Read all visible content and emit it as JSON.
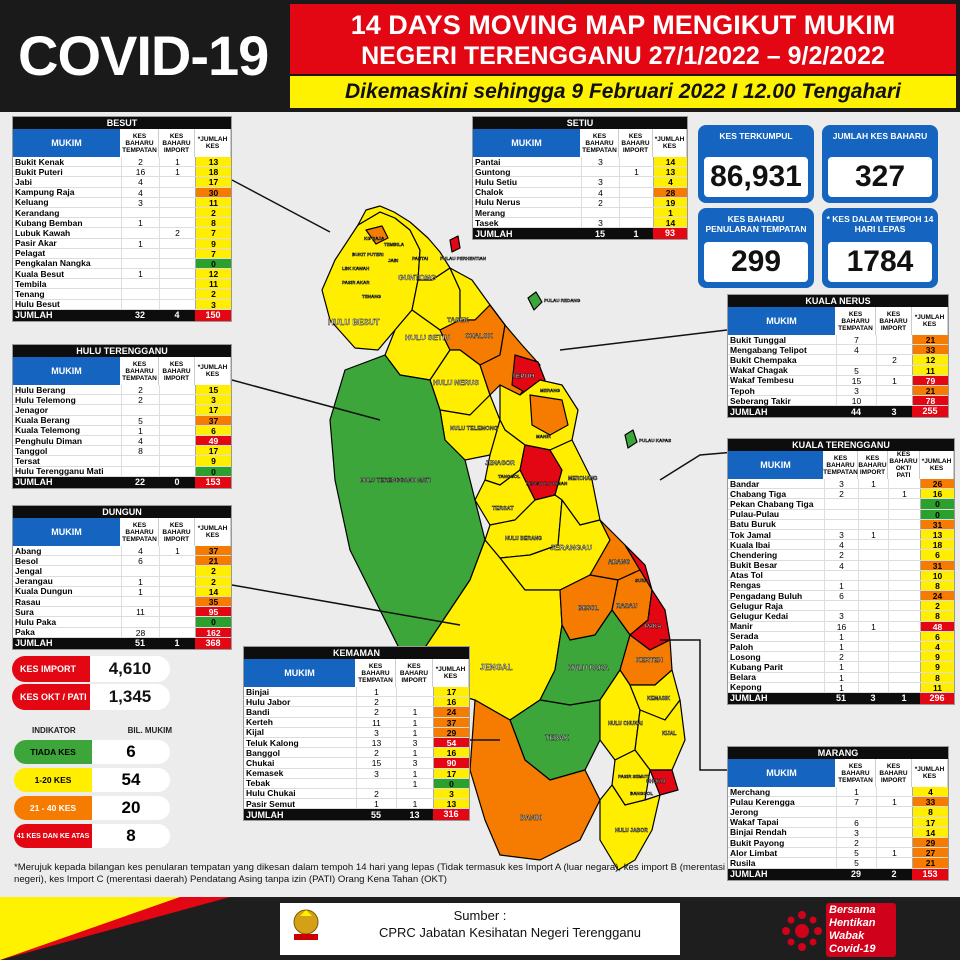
{
  "header": {
    "covid": "COVID-19",
    "title1": "14 DAYS MOVING MAP MENGIKUT MUKIM",
    "title2": "NEGERI TERENGGANU 27/1/2022 – 9/2/2022",
    "updated": "Dikemaskini sehingga  9 Februari 2022 I 12.00 Tengahari"
  },
  "columns": {
    "mukim": "MUKIM",
    "tempatan": "KES BAHARU TEMPATAN",
    "import": "KES BAHARU IMPORT",
    "okt": "KES BAHARU OKT/ PATI",
    "jumlah": "*JUMLAH KES",
    "total": "JUMLAH"
  },
  "stats": {
    "kes_terkumpul": {
      "label": "KES TERKUMPUL",
      "value": "86,931"
    },
    "jumlah_baharu": {
      "label": "JUMLAH KES BAHARU",
      "value": "327"
    },
    "penularan": {
      "label": "KES BAHARU PENULARAN TEMPATAN",
      "value": "299"
    },
    "tempoh": {
      "label": "* KES DALAM TEMPOH 14 HARI LEPAS",
      "value": "1784"
    }
  },
  "besut": {
    "title": "BESUT",
    "rows": [
      [
        "Bukit Kenak",
        "2",
        "1",
        "13",
        "y"
      ],
      [
        "Bukit Puteri",
        "16",
        "1",
        "18",
        "y"
      ],
      [
        "Jabi",
        "4",
        "",
        "17",
        "y"
      ],
      [
        "Kampung Raja",
        "4",
        "",
        "30",
        "o"
      ],
      [
        "Keluang",
        "3",
        "",
        "11",
        "y"
      ],
      [
        "Kerandang",
        "",
        "",
        "2",
        "y"
      ],
      [
        "Kubang Bemban",
        "1",
        "",
        "8",
        "y"
      ],
      [
        "Lubuk Kawah",
        "",
        "2",
        "7",
        "y"
      ],
      [
        "Pasir Akar",
        "1",
        "",
        "9",
        "y"
      ],
      [
        "Pelagat",
        "",
        "",
        "7",
        "y"
      ],
      [
        "Pengkalan Nangka",
        "",
        "",
        "0",
        "g"
      ],
      [
        "Kuala Besut",
        "1",
        "",
        "12",
        "y"
      ],
      [
        "Tembila",
        "",
        "",
        "11",
        "y"
      ],
      [
        "Tenang",
        "",
        "",
        "2",
        "y"
      ],
      [
        "Hulu Besut",
        "",
        "",
        "3",
        "y"
      ]
    ],
    "total": [
      "32",
      "4",
      "150"
    ]
  },
  "hulu_terengganu": {
    "title": "HULU TERENGGANU",
    "rows": [
      [
        "Hulu Berang",
        "2",
        "",
        "15",
        "y"
      ],
      [
        "Hulu Telemong",
        "2",
        "",
        "3",
        "y"
      ],
      [
        "Jenagor",
        "",
        "",
        "17",
        "y"
      ],
      [
        "Kuala Berang",
        "5",
        "",
        "37",
        "o"
      ],
      [
        "Kuala Telemong",
        "1",
        "",
        "6",
        "y"
      ],
      [
        "Penghulu Diman",
        "4",
        "",
        "49",
        "r"
      ],
      [
        "Tanggol",
        "8",
        "",
        "17",
        "y"
      ],
      [
        "Tersat",
        "",
        "",
        "9",
        "y"
      ],
      [
        "Hulu Terengganu Mati",
        "",
        "",
        "0",
        "g"
      ]
    ],
    "total": [
      "22",
      "0",
      "153"
    ]
  },
  "dungun": {
    "title": "DUNGUN",
    "rows": [
      [
        "Abang",
        "4",
        "1",
        "37",
        "o"
      ],
      [
        "Besol",
        "6",
        "",
        "21",
        "o"
      ],
      [
        "Jengal",
        "",
        "",
        "2",
        "y"
      ],
      [
        "Jerangau",
        "1",
        "",
        "2",
        "y"
      ],
      [
        "Kuala Dungun",
        "1",
        "",
        "14",
        "y"
      ],
      [
        "Rasau",
        "",
        "",
        "35",
        "o"
      ],
      [
        "Sura",
        "11",
        "",
        "95",
        "r"
      ],
      [
        "Hulu Paka",
        "",
        "",
        "0",
        "g"
      ],
      [
        "Paka",
        "28",
        "",
        "162",
        "r"
      ]
    ],
    "total": [
      "51",
      "1",
      "368"
    ]
  },
  "setiu": {
    "title": "SETIU",
    "rows": [
      [
        "Pantai",
        "3",
        "",
        "14",
        "y"
      ],
      [
        "Guntong",
        "",
        "1",
        "13",
        "y"
      ],
      [
        "Hulu Setiu",
        "3",
        "",
        "4",
        "y"
      ],
      [
        "Chalok",
        "4",
        "",
        "28",
        "o"
      ],
      [
        "Hulu Nerus",
        "2",
        "",
        "19",
        "y"
      ],
      [
        "Merang",
        "",
        "",
        "1",
        "y"
      ],
      [
        "Tasek",
        "3",
        "",
        "14",
        "y"
      ]
    ],
    "total": [
      "15",
      "1",
      "93"
    ]
  },
  "kuala_nerus": {
    "title": "KUALA NERUS",
    "rows": [
      [
        "Bukit Tunggal",
        "7",
        "",
        "21",
        "o"
      ],
      [
        "Mengabang Telipot",
        "4",
        "",
        "33",
        "o"
      ],
      [
        "Bukit Chempaka",
        "",
        "2",
        "12",
        "y"
      ],
      [
        "Wakaf Chagak",
        "5",
        "",
        "11",
        "y"
      ],
      [
        "Wakaf Tembesu",
        "15",
        "1",
        "79",
        "r"
      ],
      [
        "Tepoh",
        "3",
        "",
        "21",
        "o"
      ],
      [
        "Seberang Takir",
        "10",
        "",
        "78",
        "r"
      ]
    ],
    "total": [
      "44",
      "3",
      "255"
    ]
  },
  "kuala_terengganu": {
    "title": "KUALA TERENGGANU",
    "rows": [
      [
        "Bandar",
        "3",
        "1",
        "",
        "26",
        "o"
      ],
      [
        "Chabang Tiga",
        "2",
        "",
        "1",
        "16",
        "y"
      ],
      [
        "Pekan Chabang Tiga",
        "",
        "",
        "",
        "0",
        "g"
      ],
      [
        "Pulau-Pulau",
        "",
        "",
        "",
        "0",
        "g"
      ],
      [
        "Batu Buruk",
        "",
        "",
        "",
        "31",
        "o"
      ],
      [
        "Tok Jamal",
        "3",
        "1",
        "",
        "13",
        "y"
      ],
      [
        "Kuala Ibai",
        "4",
        "",
        "",
        "18",
        "y"
      ],
      [
        "Chendering",
        "2",
        "",
        "",
        "6",
        "y"
      ],
      [
        "Bukit Besar",
        "4",
        "",
        "",
        "31",
        "o"
      ],
      [
        "Atas Tol",
        "",
        "",
        "",
        "10",
        "y"
      ],
      [
        "Rengas",
        "1",
        "",
        "",
        "8",
        "y"
      ],
      [
        "Pengadang Buluh",
        "6",
        "",
        "",
        "24",
        "o"
      ],
      [
        "Gelugur Raja",
        "",
        "",
        "",
        "2",
        "y"
      ],
      [
        "Gelugur Kedai",
        "3",
        "",
        "",
        "8",
        "y"
      ],
      [
        "Manir",
        "16",
        "1",
        "",
        "48",
        "r"
      ],
      [
        "Serada",
        "1",
        "",
        "",
        "6",
        "y"
      ],
      [
        "Paloh",
        "1",
        "",
        "",
        "4",
        "y"
      ],
      [
        "Losong",
        "2",
        "",
        "",
        "9",
        "y"
      ],
      [
        "Kubang Parit",
        "1",
        "",
        "",
        "9",
        "y"
      ],
      [
        "Belara",
        "1",
        "",
        "",
        "8",
        "y"
      ],
      [
        "Kepong",
        "1",
        "",
        "",
        "11",
        "y"
      ]
    ],
    "total": [
      "51",
      "3",
      "1",
      "296"
    ]
  },
  "kemaman": {
    "title": "KEMAMAN",
    "rows": [
      [
        "Binjai",
        "1",
        "",
        "17",
        "y"
      ],
      [
        "Hulu Jabor",
        "2",
        "",
        "16",
        "y"
      ],
      [
        "Bandi",
        "2",
        "1",
        "24",
        "o"
      ],
      [
        "Kerteh",
        "11",
        "1",
        "37",
        "o"
      ],
      [
        "Kijal",
        "3",
        "1",
        "29",
        "o"
      ],
      [
        "Teluk Kalong",
        "13",
        "3",
        "54",
        "r"
      ],
      [
        "Banggol",
        "2",
        "1",
        "16",
        "y"
      ],
      [
        "Chukai",
        "15",
        "3",
        "90",
        "r"
      ],
      [
        "Kemasek",
        "3",
        "1",
        "17",
        "y"
      ],
      [
        "Tebak",
        "",
        "1",
        "0",
        "g"
      ],
      [
        "Hulu Chukai",
        "2",
        "",
        "3",
        "y"
      ],
      [
        "Pasir Semut",
        "1",
        "1",
        "13",
        "y"
      ]
    ],
    "total": [
      "55",
      "13",
      "316"
    ]
  },
  "marang": {
    "title": "MARANG",
    "rows": [
      [
        "Merchang",
        "1",
        "",
        "4",
        "y"
      ],
      [
        "Pulau Kerengga",
        "7",
        "1",
        "33",
        "o"
      ],
      [
        "Jerong",
        "",
        "",
        "8",
        "y"
      ],
      [
        "Wakaf Tapai",
        "6",
        "",
        "17",
        "y"
      ],
      [
        "Binjai Rendah",
        "3",
        "",
        "14",
        "y"
      ],
      [
        "Bukit Payong",
        "2",
        "",
        "29",
        "o"
      ],
      [
        "Alor Limbat",
        "5",
        "1",
        "27",
        "o"
      ],
      [
        "Rusila",
        "5",
        "",
        "21",
        "o"
      ]
    ],
    "total": [
      "29",
      "2",
      "153"
    ]
  },
  "pills": {
    "import": {
      "label": "KES IMPORT",
      "value": "4,610"
    },
    "okt": {
      "label": "KES OKT / PATI",
      "value": "1,345"
    }
  },
  "indicator": {
    "h1": "INDIKATOR",
    "h2": "BIL. MUKIM",
    "rows": [
      [
        "TIADA KES",
        "6",
        "g"
      ],
      [
        "1-20 KES",
        "54",
        "y"
      ],
      [
        "21 - 40 KES",
        "20",
        "o"
      ],
      [
        "41 KES DAN KE ATAS",
        "8",
        "r"
      ]
    ]
  },
  "note": "*Merujuk kepada bilangan kes penularan tempatan yang dikesan dalam tempoh 14 hari yang lepas (Tidak termasuk kes Import A (luar negara), kes import B (merentasi negeri), kes Import C (merentasi daerah) Pendatang Asing tanpa izin (PATI) Orang Kena Tahan (OKT)",
  "footer": {
    "sumber": "Sumber :",
    "source": "CPRC Jabatan Kesihatan Negeri  Terengganu",
    "crest_caption": "KEMENTERIAN KESIHATAN MALAYSIA JABATAN KESIHATAN NEGERI TERENGGANU",
    "logo": "Bersama Hentikan Wabak Covid-19"
  },
  "map_labels": [
    "HULU BESUT",
    "GUNTONG",
    "HULU SETIU",
    "TASEK",
    "CHALOK",
    "HULU NERUS",
    "TEPOH",
    "HULU TELEMONG",
    "HULU TERENGGANU MATI",
    "JENAGOR",
    "TERSAT",
    "HULU BERANG",
    "JERANGAU",
    "ABANG",
    "BESOL",
    "RASAU",
    "PAKA",
    "JENGAL",
    "HULU PAKA",
    "KERTEH",
    "KEMASIK",
    "TEBAK",
    "BANDI",
    "HULU CHUKAI",
    "KIJAL",
    "CHUKAI",
    "PASIR SEMUT",
    "BANGGOL",
    "HULU JABOR",
    "MERCHANG",
    "PENGHULU DIMAN",
    "PULAU REDANG",
    "PULAU PERHENTIAN",
    "PULAU KAPAS",
    "KG RAJA",
    "JABI",
    "TENANG",
    "PASIR AKAR",
    "LBK KAWAH",
    "BUKIT PUTERI",
    "TEMBILA",
    "PANTAI",
    "MERANG",
    "SURA",
    "MANIR",
    "TANGGOL"
  ]
}
